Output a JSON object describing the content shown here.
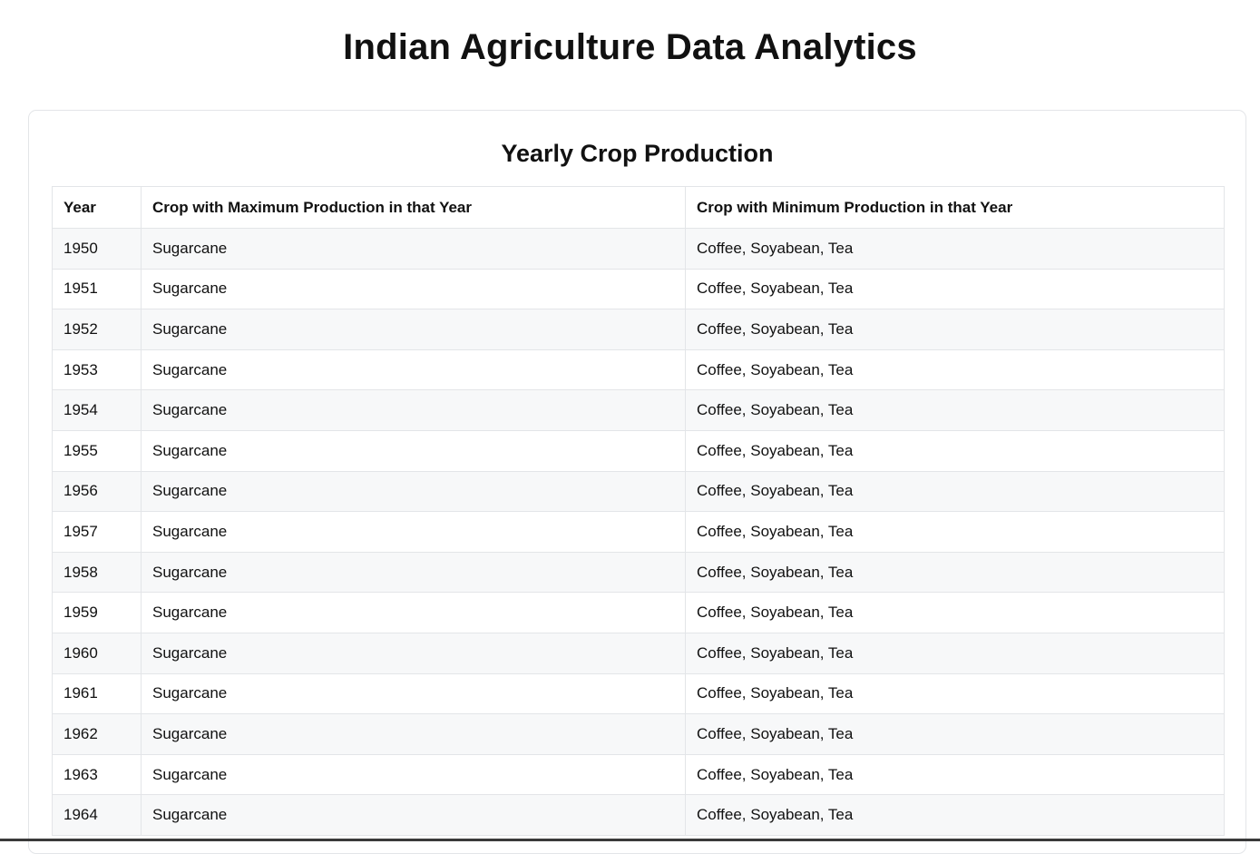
{
  "page": {
    "title": "Indian Agriculture Data Analytics"
  },
  "card": {
    "title": "Yearly Crop Production"
  },
  "table": {
    "headers": {
      "year": "Year",
      "max": "Crop with Maximum Production in that Year",
      "min": "Crop with Minimum Production in that Year"
    },
    "rows": [
      {
        "year": "1950",
        "max": "Sugarcane",
        "min": "Coffee, Soyabean, Tea"
      },
      {
        "year": "1951",
        "max": "Sugarcane",
        "min": "Coffee, Soyabean, Tea"
      },
      {
        "year": "1952",
        "max": "Sugarcane",
        "min": "Coffee, Soyabean, Tea"
      },
      {
        "year": "1953",
        "max": "Sugarcane",
        "min": "Coffee, Soyabean, Tea"
      },
      {
        "year": "1954",
        "max": "Sugarcane",
        "min": "Coffee, Soyabean, Tea"
      },
      {
        "year": "1955",
        "max": "Sugarcane",
        "min": "Coffee, Soyabean, Tea"
      },
      {
        "year": "1956",
        "max": "Sugarcane",
        "min": "Coffee, Soyabean, Tea"
      },
      {
        "year": "1957",
        "max": "Sugarcane",
        "min": "Coffee, Soyabean, Tea"
      },
      {
        "year": "1958",
        "max": "Sugarcane",
        "min": "Coffee, Soyabean, Tea"
      },
      {
        "year": "1959",
        "max": "Sugarcane",
        "min": "Coffee, Soyabean, Tea"
      },
      {
        "year": "1960",
        "max": "Sugarcane",
        "min": "Coffee, Soyabean, Tea"
      },
      {
        "year": "1961",
        "max": "Sugarcane",
        "min": "Coffee, Soyabean, Tea"
      },
      {
        "year": "1962",
        "max": "Sugarcane",
        "min": "Coffee, Soyabean, Tea"
      },
      {
        "year": "1963",
        "max": "Sugarcane",
        "min": "Coffee, Soyabean, Tea"
      },
      {
        "year": "1964",
        "max": "Sugarcane",
        "min": "Coffee, Soyabean, Tea"
      }
    ]
  }
}
